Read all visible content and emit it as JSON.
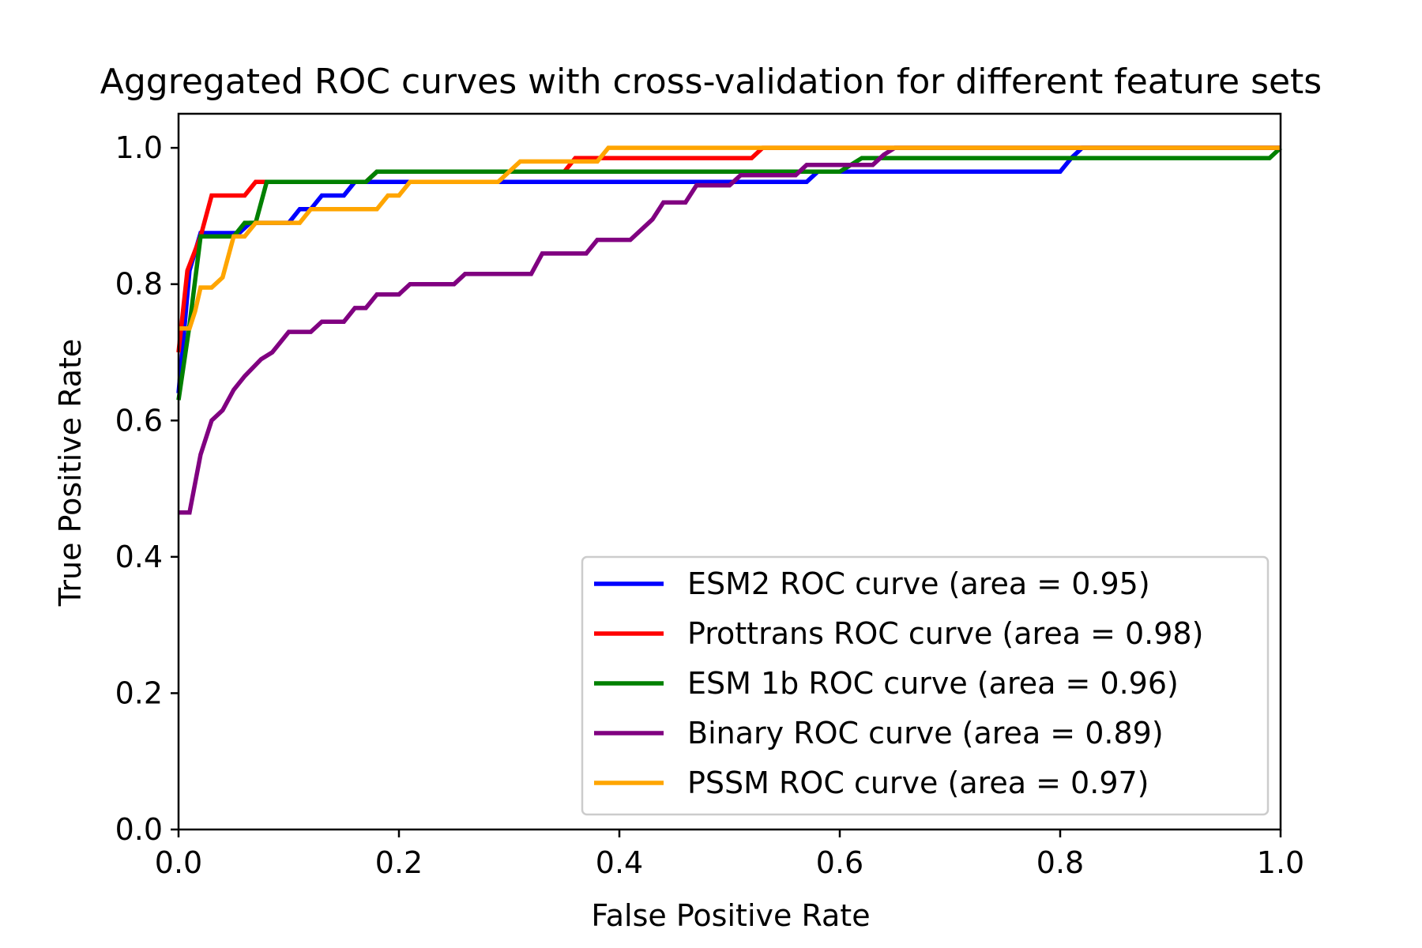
{
  "chart_data": {
    "type": "line",
    "title": "Aggregated ROC curves with cross-validation for different feature sets",
    "xlabel": "False Positive Rate",
    "ylabel": "True Positive Rate",
    "xlim": [
      0.0,
      1.0
    ],
    "ylim": [
      0.0,
      1.05
    ],
    "x_ticks": [
      "0.0",
      "0.2",
      "0.4",
      "0.6",
      "0.8",
      "1.0"
    ],
    "y_ticks": [
      "0.0",
      "0.2",
      "0.4",
      "0.6",
      "0.8",
      "1.0"
    ],
    "grid": false,
    "legend_position": "lower-right",
    "series": [
      {
        "name": "ESM2 ROC curve (area = 0.95)",
        "color": "#0000ff",
        "points": [
          [
            0,
            0.64
          ],
          [
            0.01,
            0.82
          ],
          [
            0.02,
            0.875
          ],
          [
            0.055,
            0.875
          ],
          [
            0.065,
            0.89
          ],
          [
            0.1,
            0.89
          ],
          [
            0.11,
            0.91
          ],
          [
            0.12,
            0.91
          ],
          [
            0.13,
            0.93
          ],
          [
            0.15,
            0.93
          ],
          [
            0.16,
            0.95
          ],
          [
            0.57,
            0.95
          ],
          [
            0.58,
            0.965
          ],
          [
            0.8,
            0.965
          ],
          [
            0.81,
            0.985
          ],
          [
            0.82,
            1.0
          ],
          [
            1.0,
            1.0
          ]
        ]
      },
      {
        "name": "Prottrans ROC curve (area = 0.98)",
        "color": "#ff0000",
        "points": [
          [
            0,
            0.7
          ],
          [
            0.008,
            0.82
          ],
          [
            0.02,
            0.87
          ],
          [
            0.03,
            0.93
          ],
          [
            0.06,
            0.93
          ],
          [
            0.07,
            0.95
          ],
          [
            0.17,
            0.95
          ],
          [
            0.18,
            0.965
          ],
          [
            0.35,
            0.965
          ],
          [
            0.36,
            0.985
          ],
          [
            0.52,
            0.985
          ],
          [
            0.53,
            1.0
          ],
          [
            1.0,
            1.0
          ]
        ]
      },
      {
        "name": "ESM 1b ROC curve (area = 0.96)",
        "color": "#008000",
        "points": [
          [
            0,
            0.63
          ],
          [
            0.01,
            0.74
          ],
          [
            0.02,
            0.87
          ],
          [
            0.05,
            0.87
          ],
          [
            0.06,
            0.89
          ],
          [
            0.07,
            0.89
          ],
          [
            0.08,
            0.95
          ],
          [
            0.17,
            0.95
          ],
          [
            0.18,
            0.965
          ],
          [
            0.6,
            0.965
          ],
          [
            0.62,
            0.985
          ],
          [
            0.99,
            0.985
          ],
          [
            1.0,
            1.0
          ]
        ]
      },
      {
        "name": "Binary ROC curve (area = 0.89)",
        "color": "#800080",
        "points": [
          [
            0,
            0.465
          ],
          [
            0.01,
            0.465
          ],
          [
            0.02,
            0.55
          ],
          [
            0.03,
            0.6
          ],
          [
            0.04,
            0.615
          ],
          [
            0.05,
            0.645
          ],
          [
            0.06,
            0.665
          ],
          [
            0.075,
            0.69
          ],
          [
            0.085,
            0.7
          ],
          [
            0.09,
            0.71
          ],
          [
            0.1,
            0.73
          ],
          [
            0.12,
            0.73
          ],
          [
            0.13,
            0.745
          ],
          [
            0.15,
            0.745
          ],
          [
            0.16,
            0.765
          ],
          [
            0.17,
            0.765
          ],
          [
            0.18,
            0.785
          ],
          [
            0.2,
            0.785
          ],
          [
            0.21,
            0.8
          ],
          [
            0.25,
            0.8
          ],
          [
            0.26,
            0.815
          ],
          [
            0.32,
            0.815
          ],
          [
            0.33,
            0.845
          ],
          [
            0.37,
            0.845
          ],
          [
            0.38,
            0.865
          ],
          [
            0.41,
            0.865
          ],
          [
            0.43,
            0.895
          ],
          [
            0.44,
            0.92
          ],
          [
            0.46,
            0.92
          ],
          [
            0.47,
            0.945
          ],
          [
            0.5,
            0.945
          ],
          [
            0.51,
            0.96
          ],
          [
            0.56,
            0.96
          ],
          [
            0.57,
            0.975
          ],
          [
            0.63,
            0.975
          ],
          [
            0.64,
            0.99
          ],
          [
            0.65,
            1.0
          ],
          [
            1.0,
            1.0
          ]
        ]
      },
      {
        "name": "PSSM ROC curve (area = 0.97)",
        "color": "#ffa500",
        "points": [
          [
            0,
            0.735
          ],
          [
            0.01,
            0.735
          ],
          [
            0.015,
            0.76
          ],
          [
            0.02,
            0.795
          ],
          [
            0.03,
            0.795
          ],
          [
            0.04,
            0.81
          ],
          [
            0.05,
            0.87
          ],
          [
            0.06,
            0.87
          ],
          [
            0.07,
            0.89
          ],
          [
            0.11,
            0.89
          ],
          [
            0.12,
            0.91
          ],
          [
            0.18,
            0.91
          ],
          [
            0.19,
            0.93
          ],
          [
            0.2,
            0.93
          ],
          [
            0.21,
            0.95
          ],
          [
            0.29,
            0.95
          ],
          [
            0.31,
            0.98
          ],
          [
            0.38,
            0.98
          ],
          [
            0.39,
            1.0
          ],
          [
            1.0,
            1.0
          ]
        ]
      }
    ]
  }
}
